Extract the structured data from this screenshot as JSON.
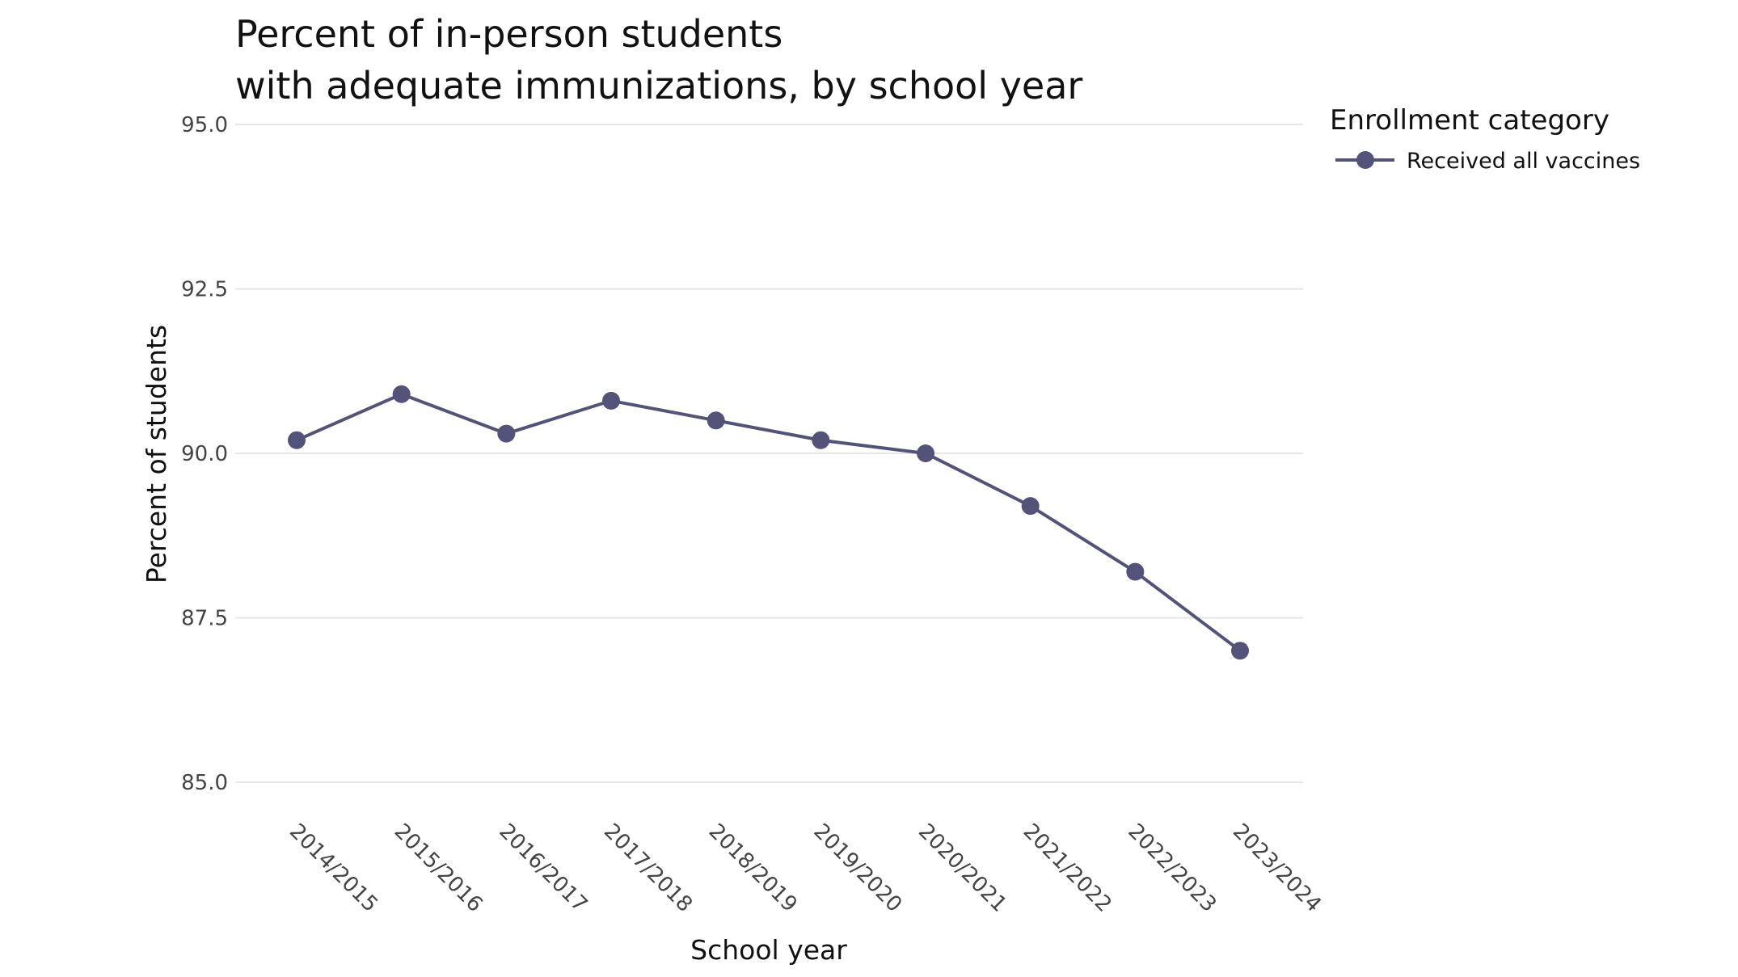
{
  "chart_data": {
    "type": "line",
    "title": [
      "Percent of in-person students",
      "with adequate immunizations, by school year"
    ],
    "xlabel": "School year",
    "ylabel": "Percent of students",
    "categories": [
      "2014/2015",
      "2015/2016",
      "2016/2017",
      "2017/2018",
      "2018/2019",
      "2019/2020",
      "2020/2021",
      "2021/2022",
      "2022/2023",
      "2023/2024"
    ],
    "series": [
      {
        "name": "Received all vaccines",
        "color": "#53537a",
        "values": [
          90.2,
          90.9,
          90.3,
          90.8,
          90.5,
          90.2,
          90.0,
          89.2,
          88.2,
          87.0
        ]
      }
    ],
    "ylim": [
      85.0,
      95.0
    ],
    "yticks": [
      "85.0",
      "87.5",
      "90.0",
      "92.5",
      "95.0"
    ],
    "grid": true,
    "legend": {
      "title": "Enrollment category",
      "placement": "right"
    }
  }
}
